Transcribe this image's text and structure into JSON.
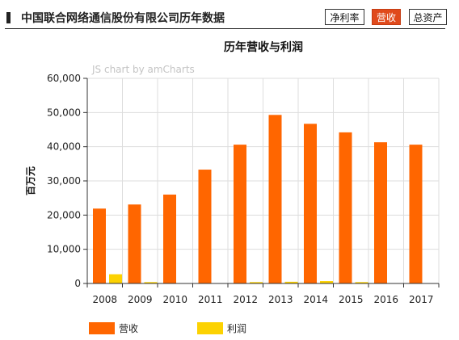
{
  "header": {
    "title": "中国联合网络通信股份有限公司历年数据",
    "tabs": [
      {
        "label": "净利率",
        "active": false
      },
      {
        "label": "营收",
        "active": true
      },
      {
        "label": "总资产",
        "active": false
      }
    ]
  },
  "watermark": "JS chart by amCharts",
  "colors": {
    "revenue": "#ff6600",
    "profit": "#fcd202",
    "active_tab": "#e04a1c"
  },
  "chart_data": {
    "type": "bar",
    "title": "历年营收与利润",
    "ylabel": "百万元",
    "xlabel": "",
    "ylim": [
      0,
      60000
    ],
    "yticks": [
      0,
      10000,
      20000,
      30000,
      40000,
      50000,
      60000
    ],
    "ytick_labels": [
      "0",
      "10,000",
      "20,000",
      "30,000",
      "40,000",
      "50,000",
      "60,000"
    ],
    "grid": true,
    "legend_position": "bottom-left",
    "categories": [
      "2008",
      "2009",
      "2010",
      "2011",
      "2012",
      "2013",
      "2014",
      "2015",
      "2016",
      "2017"
    ],
    "series": [
      {
        "name": "营收",
        "color": "#ff6600",
        "values": [
          21900,
          23100,
          26000,
          33300,
          40600,
          49300,
          46700,
          44200,
          41300,
          40600
        ]
      },
      {
        "name": "利润",
        "color": "#fcd202",
        "values": [
          2700,
          400,
          100,
          100,
          400,
          500,
          700,
          400,
          100,
          100
        ]
      }
    ]
  }
}
